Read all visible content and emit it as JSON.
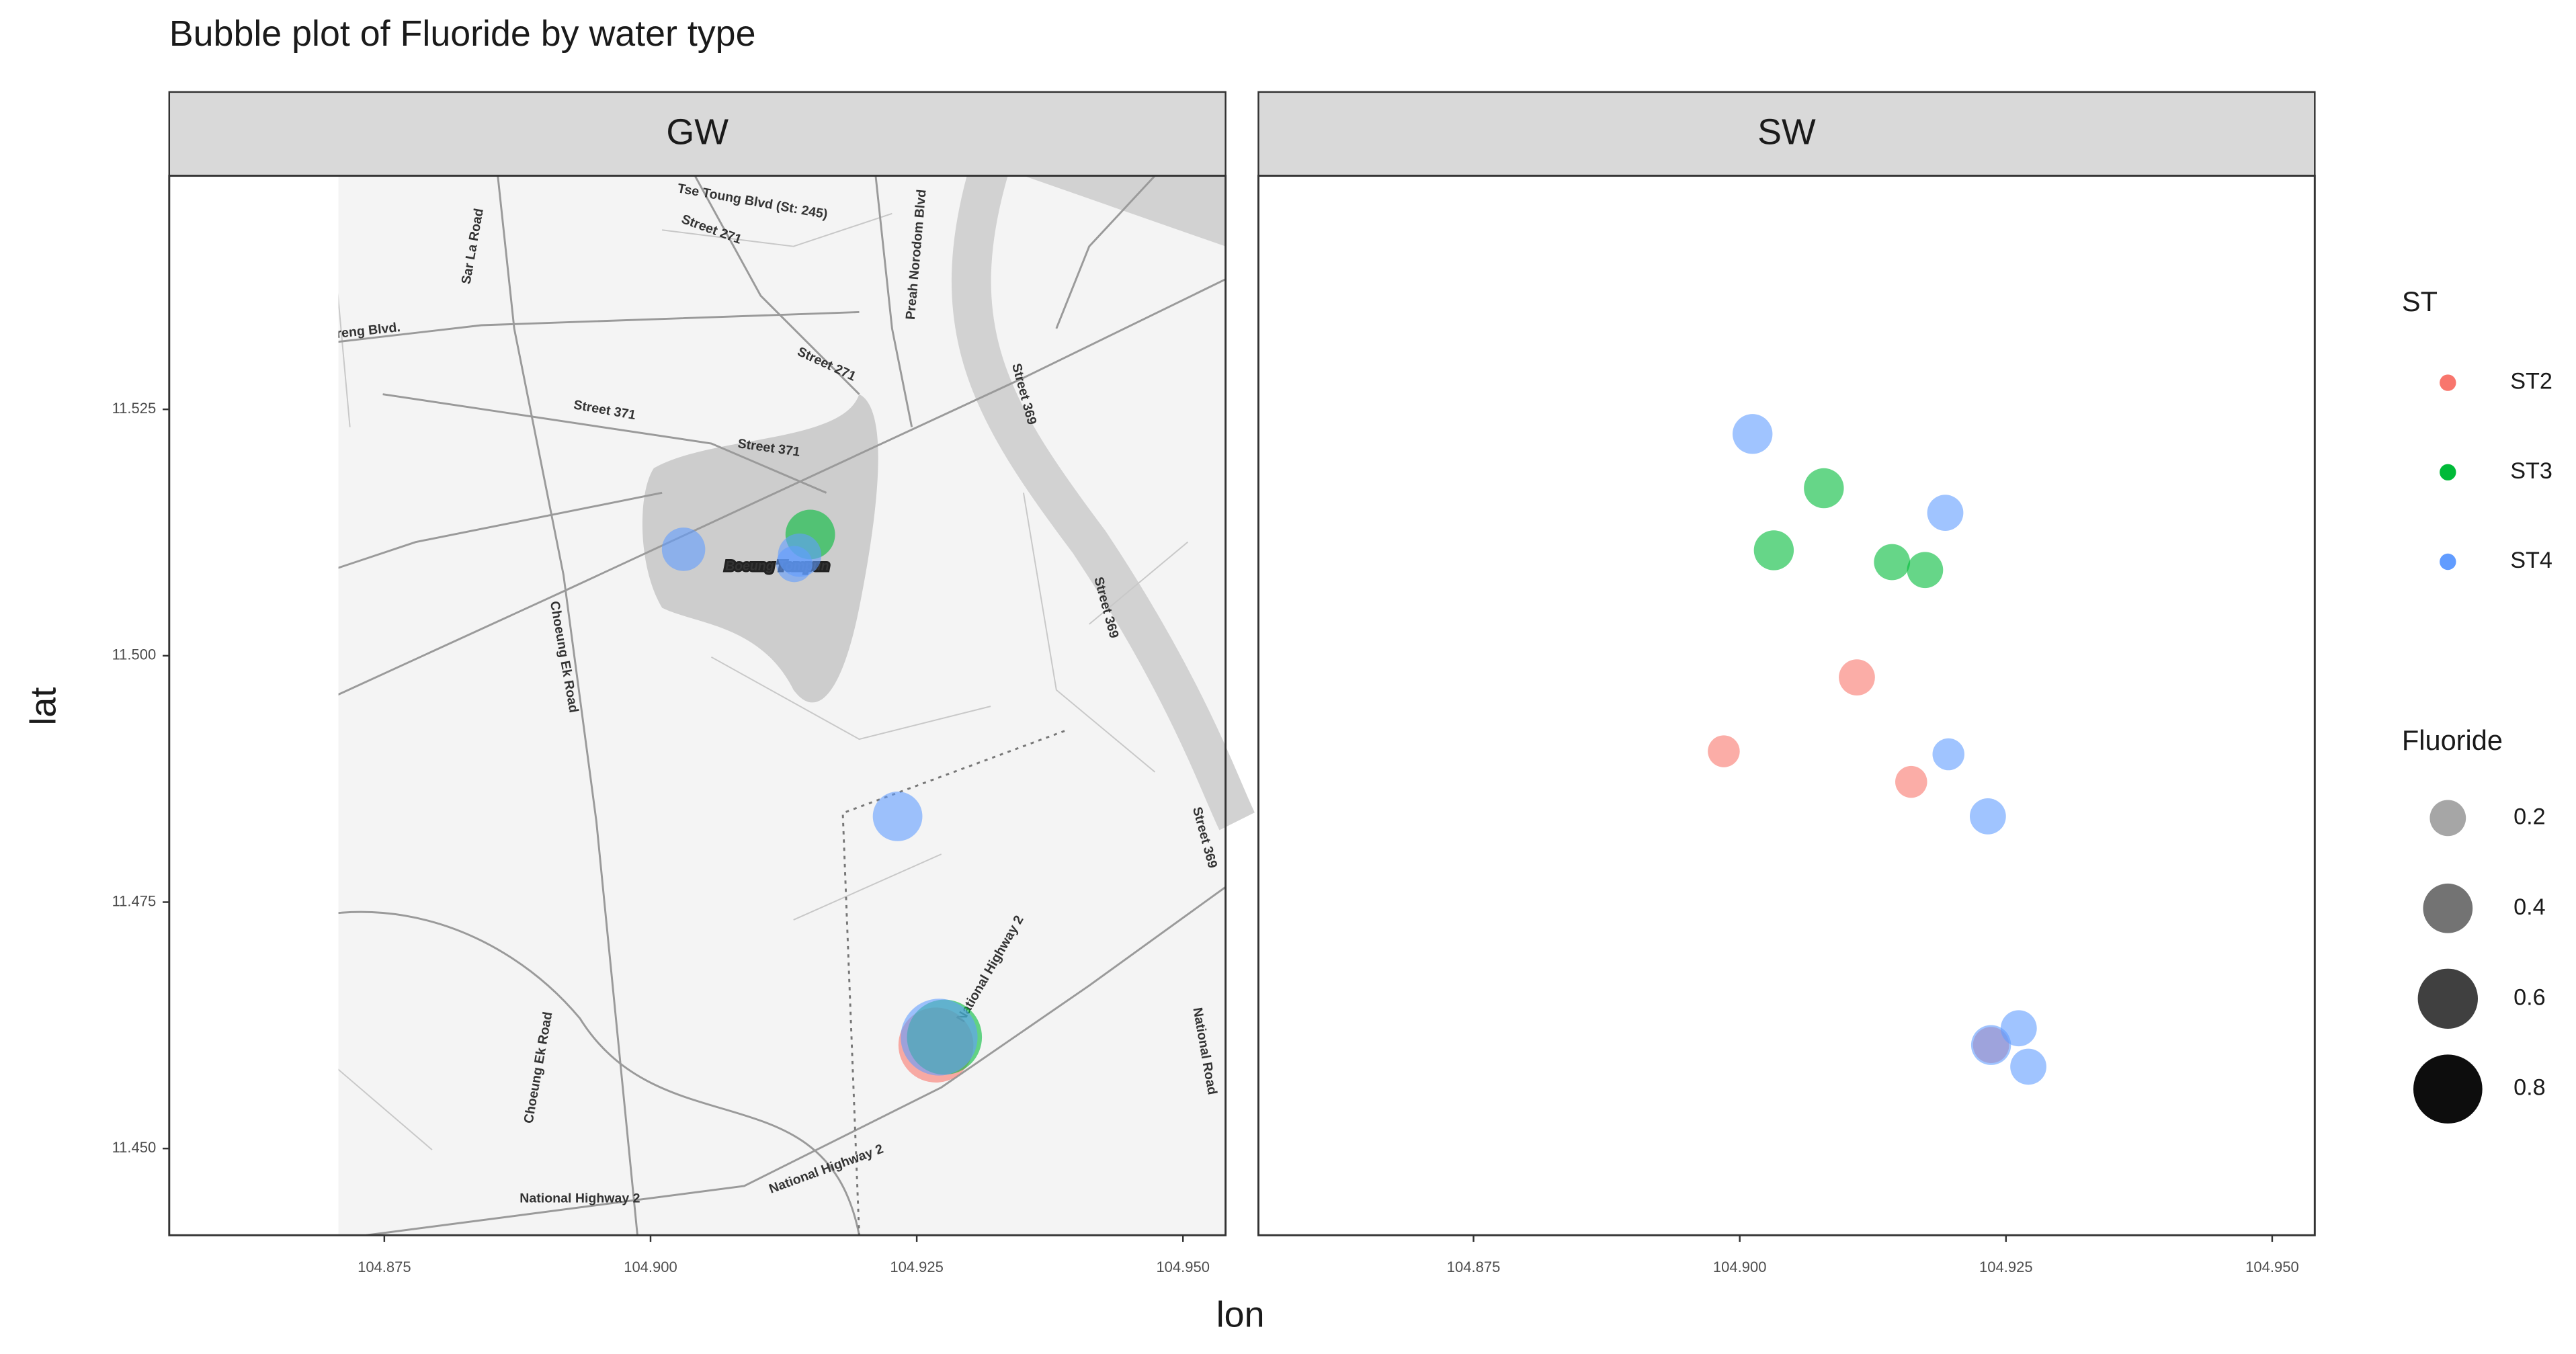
{
  "title": "Bubble plot of Fluoride by water type",
  "x_label": "lon",
  "y_label": "lat",
  "color_legend_title": "ST",
  "size_legend": {
    "title": "Fluoride",
    "values": [
      0.2,
      0.4,
      0.6,
      0.8
    ]
  },
  "map_labels": [
    "Veng Sreng Blvd.",
    "Sar La Road",
    "Street 271",
    "Street 371",
    "Tse Toung Blvd (St: 245)",
    "Preah Norodom Blvd",
    "Street 369",
    "Choeung Ek Road",
    "Boeung Tompun",
    "National Highway 2",
    "National Road"
  ],
  "chart_data": [
    {
      "type": "scatter",
      "title": "GW",
      "xlim": [
        104.8548,
        104.954
      ],
      "ylim": [
        11.4412,
        11.5487
      ],
      "xticks": [
        104.875,
        {
          "value": 104.9,
          "label": "104.900"
        },
        104.925,
        {
          "value": 104.95,
          "label": "104.950"
        }
      ],
      "yticks": [
        11.525,
        {
          "value": 11.5,
          "label": "11.500"
        },
        11.475,
        {
          "value": 11.45,
          "label": "11.450"
        }
      ],
      "series": [
        {
          "name": "ST2",
          "color": "#F8766D",
          "x": [
            104.9268
          ],
          "y": [
            11.4605
          ],
          "size": [
            0.95
          ]
        },
        {
          "name": "ST3",
          "color": "#00BA38",
          "x": [
            104.915,
            104.9276
          ],
          "y": [
            11.5123,
            11.4613
          ],
          "size": [
            0.4,
            0.95
          ]
        },
        {
          "name": "ST4",
          "color": "#619CFF",
          "x": [
            104.9031,
            104.914,
            104.9135,
            104.9232,
            104.9271
          ],
          "y": [
            11.5108,
            11.5102,
            11.5093,
            11.4837,
            11.4613
          ],
          "size": [
            0.3,
            0.3,
            0.2,
            0.4,
            1.0
          ]
        }
      ]
    },
    {
      "type": "scatter",
      "title": "SW",
      "xlim": [
        104.8548,
        104.954
      ],
      "ylim": [
        11.4412,
        11.5487
      ],
      "xticks": [
        104.875,
        {
          "value": 104.9,
          "label": "104.900"
        },
        104.925,
        {
          "value": 104.95,
          "label": "104.950"
        }
      ],
      "series": [
        {
          "name": "ST2",
          "color": "#F8766D",
          "x": [
            104.911,
            104.8985,
            104.9161,
            104.9236
          ],
          "y": [
            11.4978,
            11.4903,
            11.4872,
            11.4605
          ],
          "size": [
            0.2,
            0.15,
            0.15,
            0.2
          ]
        },
        {
          "name": "ST3",
          "color": "#00BA38",
          "x": [
            104.9079,
            104.9032,
            104.9143,
            104.9174
          ],
          "y": [
            11.517,
            11.5107,
            11.5095,
            11.5087
          ],
          "size": [
            0.25,
            0.25,
            0.2,
            0.2
          ]
        },
        {
          "name": "ST4",
          "color": "#619CFF",
          "x": [
            104.9012,
            104.9193,
            104.9196,
            104.9233,
            104.9236,
            104.9262,
            104.9271
          ],
          "y": [
            11.5225,
            11.5145,
            11.49,
            11.4837,
            11.4605,
            11.4622,
            11.4583
          ],
          "size": [
            0.25,
            0.2,
            0.15,
            0.2,
            0.25,
            0.2,
            0.2
          ]
        }
      ]
    }
  ]
}
